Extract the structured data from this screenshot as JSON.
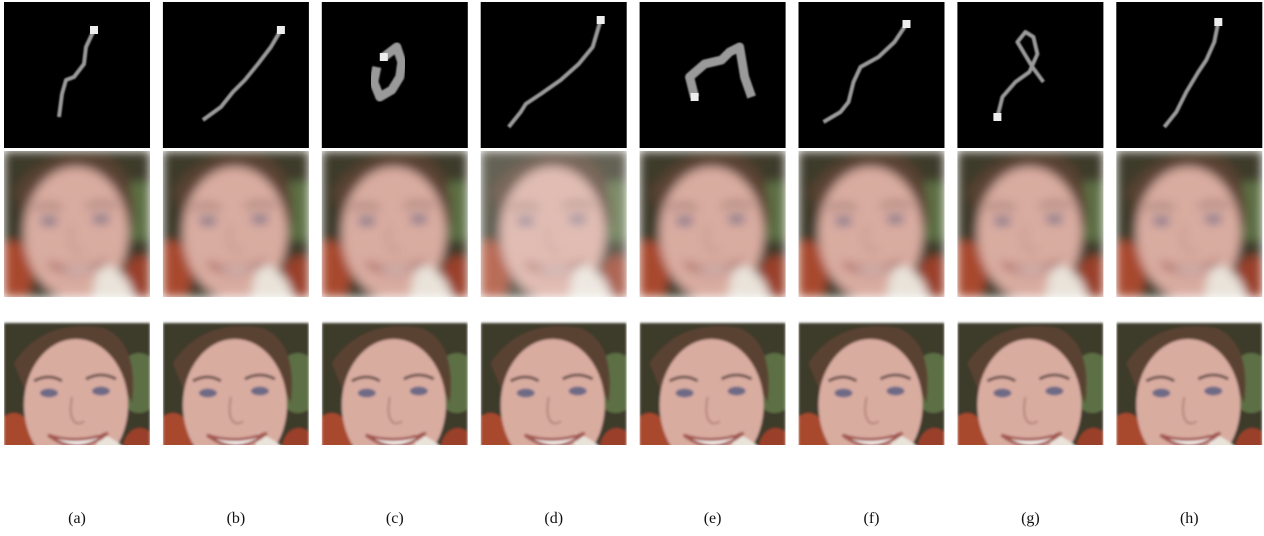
{
  "captions": [
    "(a)",
    "(b)",
    "(c)",
    "(d)",
    "(e)",
    "(f)",
    "(g)",
    "(h)"
  ]
}
